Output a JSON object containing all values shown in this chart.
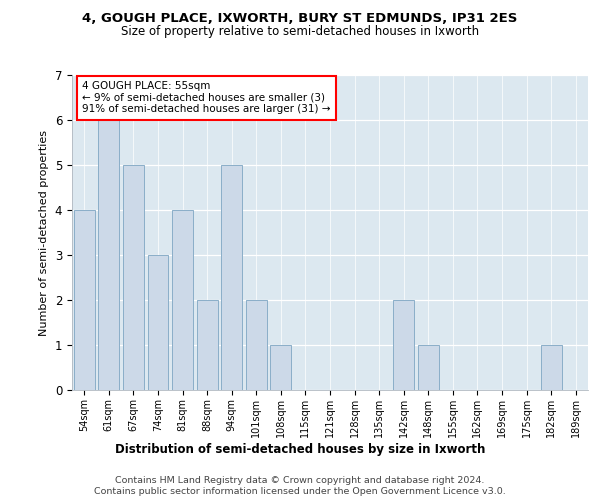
{
  "title1": "4, GOUGH PLACE, IXWORTH, BURY ST EDMUNDS, IP31 2ES",
  "title2": "Size of property relative to semi-detached houses in Ixworth",
  "xlabel": "Distribution of semi-detached houses by size in Ixworth",
  "ylabel": "Number of semi-detached properties",
  "categories": [
    "54sqm",
    "61sqm",
    "67sqm",
    "74sqm",
    "81sqm",
    "88sqm",
    "94sqm",
    "101sqm",
    "108sqm",
    "115sqm",
    "121sqm",
    "128sqm",
    "135sqm",
    "142sqm",
    "148sqm",
    "155sqm",
    "162sqm",
    "169sqm",
    "175sqm",
    "182sqm",
    "189sqm"
  ],
  "values": [
    4,
    6,
    5,
    3,
    4,
    2,
    5,
    2,
    1,
    0,
    0,
    0,
    0,
    2,
    1,
    0,
    0,
    0,
    0,
    1,
    0
  ],
  "bar_color_normal": "#ccd9e8",
  "bar_edge_color": "#8aaec8",
  "annotation_box_text": "4 GOUGH PLACE: 55sqm\n← 9% of semi-detached houses are smaller (3)\n91% of semi-detached houses are larger (31) →",
  "ylim": [
    0,
    7
  ],
  "yticks": [
    0,
    1,
    2,
    3,
    4,
    5,
    6,
    7
  ],
  "footer1": "Contains HM Land Registry data © Crown copyright and database right 2024.",
  "footer2": "Contains public sector information licensed under the Open Government Licence v3.0.",
  "plot_bg_color": "#dce8f0"
}
